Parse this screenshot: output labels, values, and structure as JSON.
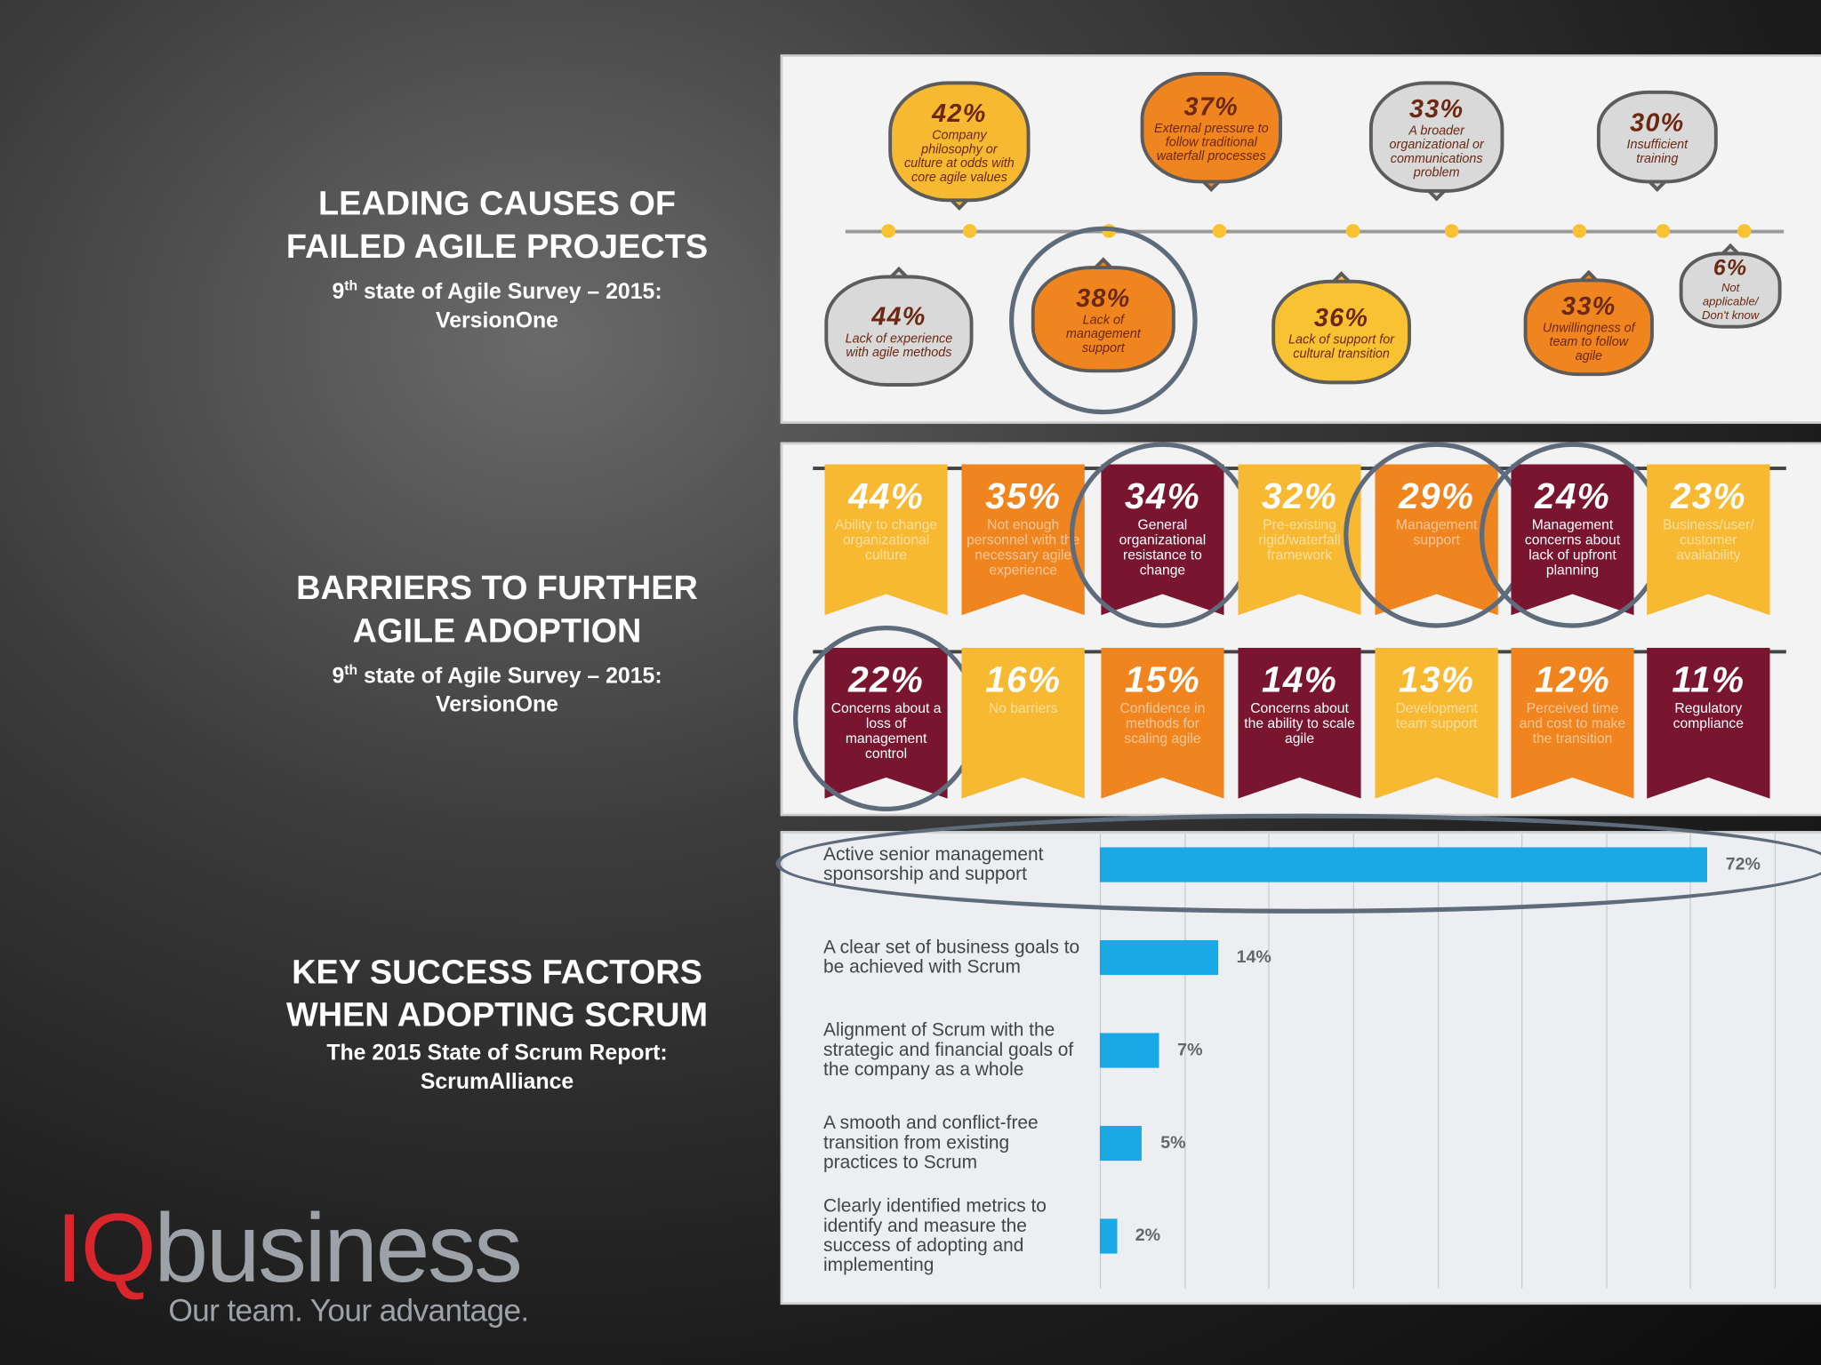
{
  "headings": [
    {
      "title": [
        "LEADING CAUSES OF",
        "FAILED AGILE PROJECTS"
      ],
      "subtitle": {
        "ordinal": "9",
        "suffix": "th",
        "text": "state of Agile Survey – 2015:"
      },
      "source": "VersionOne"
    },
    {
      "title": [
        "BARRIERS TO FURTHER",
        "AGILE ADOPTION"
      ],
      "subtitle": {
        "ordinal": "9",
        "suffix": "th",
        "text": "state of Agile Survey – 2015:"
      },
      "source": "VersionOne"
    },
    {
      "title": [
        "KEY SUCCESS FACTORS",
        "WHEN ADOPTING SCRUM"
      ],
      "subtitle": {
        "text": "The 2015 State of Scrum Report:"
      },
      "source": "ScrumAlliance"
    }
  ],
  "causes": {
    "items": [
      {
        "value": "42%",
        "label": "Company philosophy or culture at odds with core agile values",
        "color": "#f8b932"
      },
      {
        "value": "37%",
        "label": "External pressure to follow traditional waterfall processes",
        "color": "#f0841e"
      },
      {
        "value": "33%",
        "label": "A broader organizational or communications problem",
        "color": "#d9d9d9"
      },
      {
        "value": "30%",
        "label": "Insufficient training",
        "color": "#d9d9d9"
      },
      {
        "value": "44%",
        "label": "Lack of experience with agile methods",
        "color": "#d9d9d9"
      },
      {
        "value": "38%",
        "label": "Lack of management support",
        "color": "#f0841e",
        "highlight": true
      },
      {
        "value": "36%",
        "label": "Lack of support for cultural transition",
        "color": "#f8c232"
      },
      {
        "value": "33%",
        "label": "Unwillingness of team to follow agile",
        "color": "#f0841e"
      },
      {
        "value": "6%",
        "label": "Not applicable/ Don't know",
        "color": "#d9d9d9"
      }
    ]
  },
  "barriers": {
    "rows": [
      [
        {
          "value": "44%",
          "label": "Ability to change organizational culture",
          "color": "#f8b932"
        },
        {
          "value": "35%",
          "label": "Not enough personnel with the necessary agile experience",
          "color": "#f0841e"
        },
        {
          "value": "34%",
          "label": "General organizational resistance to change",
          "color": "#7a1530",
          "highlight": true
        },
        {
          "value": "32%",
          "label": "Pre-existing rigid/waterfall framework",
          "color": "#f8b932"
        },
        {
          "value": "29%",
          "label": "Management support",
          "color": "#f0841e",
          "highlight": true
        },
        {
          "value": "24%",
          "label": "Management concerns about lack of upfront planning",
          "color": "#7a1530",
          "highlight": true
        },
        {
          "value": "23%",
          "label": "Business/user/ customer availability",
          "color": "#f8b932"
        }
      ],
      [
        {
          "value": "22%",
          "label": "Concerns about a loss of management control",
          "color": "#7a1530",
          "highlight": true
        },
        {
          "value": "16%",
          "label": "No barriers",
          "color": "#f8b932"
        },
        {
          "value": "15%",
          "label": "Confidence in methods for scaling agile",
          "color": "#f0841e"
        },
        {
          "value": "14%",
          "label": "Concerns about the ability to scale agile",
          "color": "#7a1530"
        },
        {
          "value": "13%",
          "label": "Development team support",
          "color": "#f8b932"
        },
        {
          "value": "12%",
          "label": "Perceived time and cost to make the transition",
          "color": "#f0841e"
        },
        {
          "value": "11%",
          "label": "Regulatory compliance",
          "color": "#7a1530"
        }
      ]
    ]
  },
  "success_factors": {
    "type": "bar",
    "categories": [
      "Active senior management sponsorship and support",
      "A clear set of business goals to be achieved with Scrum",
      "Alignment of Scrum with the strategic and financial goals of the company as a whole",
      "A smooth and conflict-free transition from existing practices to Scrum",
      "Clearly identified metrics to identify and measure the success of adopting and implementing"
    ],
    "values": [
      72,
      14,
      7,
      5,
      2
    ],
    "value_labels": [
      "72%",
      "14%",
      "7%",
      "5%",
      "2%"
    ],
    "color": "#19a9e6",
    "xlim": [
      0,
      80
    ],
    "xticks": [
      0,
      10,
      20,
      30,
      40,
      50,
      60,
      70,
      80
    ],
    "grid": true,
    "highlight": [
      0
    ]
  },
  "logo": {
    "brand_red": "IQ",
    "brand": "business",
    "tagline": "Our team. Your advantage."
  }
}
